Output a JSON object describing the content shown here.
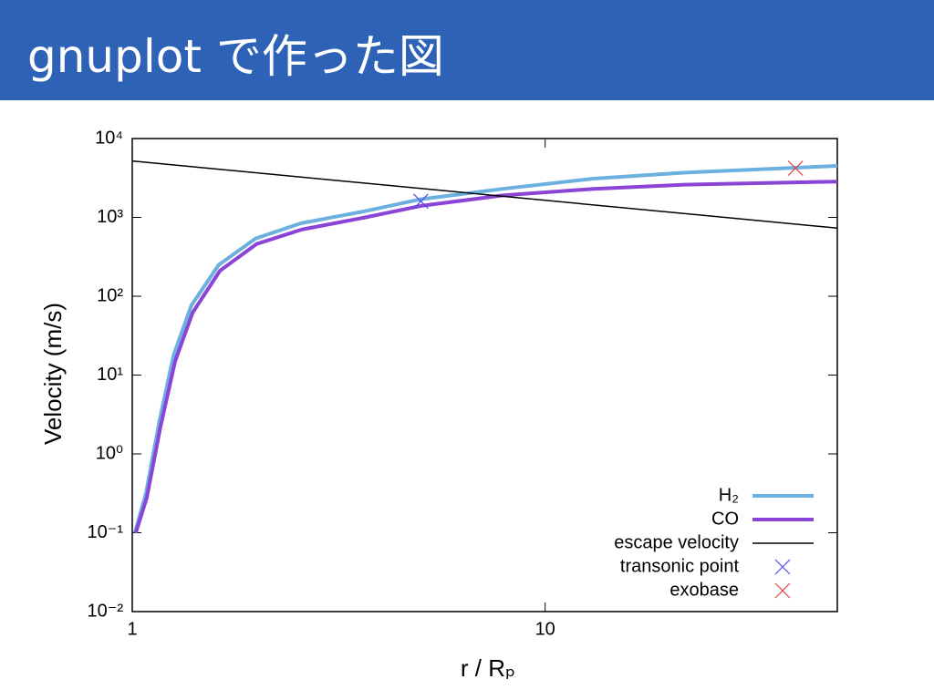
{
  "header": {
    "title": "gnuplot で作った図"
  },
  "chart_data": {
    "type": "line",
    "xlabel": "r / Rₚ",
    "ylabel": "Velocity (m/s)",
    "xlog": true,
    "ylog": true,
    "grid": false,
    "legend": "lower right",
    "xlim": [
      1,
      51
    ],
    "ylim": [
      0.01,
      10000
    ],
    "xticks": [
      1,
      10
    ],
    "yticks": [
      {
        "value": 0.01,
        "label": "10⁻²"
      },
      {
        "value": 0.1,
        "label": "10⁻¹"
      },
      {
        "value": 1,
        "label": "10⁰"
      },
      {
        "value": 10,
        "label": "10¹"
      },
      {
        "value": 100,
        "label": "10²"
      },
      {
        "value": 1000,
        "label": "10³"
      },
      {
        "value": 10000,
        "label": "10⁴"
      }
    ],
    "series": [
      {
        "name": "H₂",
        "color": "#6cb0e0",
        "style": "line",
        "width": 4,
        "x": [
          1.015,
          1.08,
          1.165,
          1.26,
          1.39,
          1.62,
          1.99,
          2.56,
          3.66,
          5.0,
          7.9,
          13.1,
          21.8,
          51
        ],
        "values": [
          0.1,
          0.32,
          2.7,
          18,
          76,
          250,
          540,
          840,
          1200,
          1700,
          2300,
          3100,
          3700,
          4500
        ]
      },
      {
        "name": "CO",
        "color": "#8a44d6",
        "style": "line",
        "width": 4,
        "x": [
          1.02,
          1.085,
          1.17,
          1.27,
          1.4,
          1.63,
          2.0,
          2.57,
          3.67,
          5.0,
          7.9,
          13.1,
          21.8,
          51
        ],
        "values": [
          0.1,
          0.28,
          2.2,
          15,
          62,
          210,
          460,
          700,
          1000,
          1400,
          1900,
          2300,
          2600,
          2850
        ]
      },
      {
        "name": "escape velocity",
        "color": "#000000",
        "style": "line",
        "width": 1.5,
        "x": [
          1,
          51
        ],
        "values": [
          5200,
          730
        ]
      },
      {
        "name": "transonic point",
        "color": "#4a4aee",
        "style": "marker",
        "x": [
          5.0
        ],
        "values": [
          1600
        ]
      },
      {
        "name": "exobase",
        "color": "#dd4444",
        "style": "marker",
        "x": [
          40.4
        ],
        "values": [
          4200
        ]
      }
    ]
  }
}
